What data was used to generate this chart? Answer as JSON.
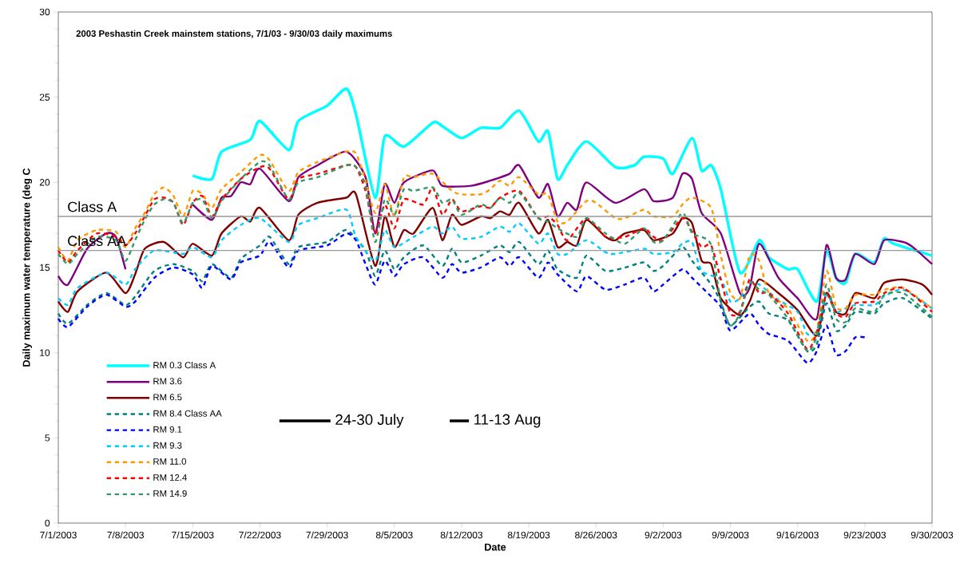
{
  "chart_data": {
    "type": "line",
    "title": "2003 Peshastin Creek mainstem stations, 7/1/03 - 9/30/03 daily maximums",
    "xlabel": "Date",
    "ylabel": "Daily maximum water temperature (deg C",
    "xlim": [
      "2003-07-01",
      "2003-09-30"
    ],
    "ylim": [
      0,
      30
    ],
    "xticks": [
      {
        "value": "2003-07-01",
        "label": "7/1/2003"
      },
      {
        "value": "2003-07-08",
        "label": "7/8/2003"
      },
      {
        "value": "2003-07-15",
        "label": "7/15/2003"
      },
      {
        "value": "2003-07-22",
        "label": "7/22/2003"
      },
      {
        "value": "2003-07-29",
        "label": "7/29/2003"
      },
      {
        "value": "2003-08-05",
        "label": "8/5/2003"
      },
      {
        "value": "2003-08-12",
        "label": "8/12/2003"
      },
      {
        "value": "2003-08-19",
        "label": "8/19/2003"
      },
      {
        "value": "2003-08-26",
        "label": "8/26/2003"
      },
      {
        "value": "2003-09-02",
        "label": "9/2/2003"
      },
      {
        "value": "2003-09-09",
        "label": "9/9/2003"
      },
      {
        "value": "2003-09-16",
        "label": "9/16/2003"
      },
      {
        "value": "2003-09-23",
        "label": "9/23/2003"
      },
      {
        "value": "2003-09-30",
        "label": "9/30/2003"
      }
    ],
    "yticks": [
      0,
      5,
      10,
      15,
      20,
      25,
      30
    ],
    "grid": false,
    "legend": "bottom left",
    "ref_lines": [
      {
        "axis": "y",
        "value": 18,
        "label": "Class A",
        "color": "#999999"
      },
      {
        "axis": "y",
        "value": 16,
        "label": "Class AA",
        "color": "#999999"
      }
    ],
    "annotations": [
      "24-30 July",
      "11-13 Aug"
    ],
    "series": [
      {
        "name": "RM 0.3 Class A",
        "color": "#00ffff",
        "line_style": "solid",
        "x": [
          "2003-07-15",
          "2003-07-17",
          "2003-07-18",
          "2003-07-21",
          "2003-07-22",
          "2003-07-25",
          "2003-07-26",
          "2003-07-29",
          "2003-07-31",
          "2003-08-01",
          "2003-08-03",
          "2003-08-04",
          "2003-08-06",
          "2003-08-09",
          "2003-08-10",
          "2003-08-12",
          "2003-08-14",
          "2003-08-16",
          "2003-08-18",
          "2003-08-20",
          "2003-08-21",
          "2003-08-22",
          "2003-08-23",
          "2003-08-25",
          "2003-08-28",
          "2003-08-30",
          "2003-08-31",
          "2003-09-02",
          "2003-09-03",
          "2003-09-05",
          "2003-09-06",
          "2003-09-07",
          "2003-09-08",
          "2003-09-10",
          "2003-09-12",
          "2003-09-13",
          "2003-09-15",
          "2003-09-16",
          "2003-09-18",
          "2003-09-19",
          "2003-09-20",
          "2003-09-21",
          "2003-09-22",
          "2003-09-24",
          "2003-09-25",
          "2003-09-26",
          "2003-09-30"
        ],
        "values": [
          20.4,
          20.2,
          21.8,
          22.5,
          23.6,
          21.9,
          23.6,
          24.5,
          25.5,
          24.0,
          19.1,
          22.7,
          22.1,
          23.5,
          23.3,
          22.6,
          23.2,
          23.2,
          24.2,
          22.4,
          23.0,
          20.2,
          21.0,
          22.4,
          20.9,
          21.0,
          21.5,
          21.4,
          20.5,
          22.6,
          20.7,
          21.0,
          19.6,
          14.7,
          16.6,
          15.6,
          14.9,
          14.9,
          13.0,
          16.0,
          14.4,
          14.1,
          15.8,
          15.3,
          16.7,
          16.4,
          15.7
        ]
      },
      {
        "name": "RM 3.6",
        "color": "#800080",
        "line_style": "solid",
        "x": [
          "2003-07-01",
          "2003-07-02",
          "2003-07-04",
          "2003-07-06",
          "2003-07-07",
          "2003-07-08",
          "2003-07-11",
          "2003-07-15",
          "2003-07-17",
          "2003-07-18",
          "2003-07-19",
          "2003-07-20",
          "2003-07-21",
          "2003-07-22",
          "2003-07-25",
          "2003-07-26",
          "2003-07-28",
          "2003-07-31",
          "2003-08-02",
          "2003-08-03",
          "2003-08-04",
          "2003-08-05",
          "2003-08-06",
          "2003-08-09",
          "2003-08-10",
          "2003-08-13",
          "2003-08-15",
          "2003-08-17",
          "2003-08-18",
          "2003-08-20",
          "2003-08-21",
          "2003-08-22",
          "2003-08-23",
          "2003-08-24",
          "2003-08-25",
          "2003-08-28",
          "2003-08-31",
          "2003-09-01",
          "2003-09-03",
          "2003-09-04",
          "2003-09-05",
          "2003-09-06",
          "2003-09-08",
          "2003-09-10",
          "2003-09-11",
          "2003-09-12",
          "2003-09-14",
          "2003-09-16",
          "2003-09-18",
          "2003-09-19",
          "2003-09-20",
          "2003-09-21",
          "2003-09-22",
          "2003-09-24",
          "2003-09-25",
          "2003-09-27",
          "2003-09-28",
          "2003-09-30"
        ],
        "values": [
          14.5,
          14.0,
          16.1,
          17.0,
          16.8,
          14.9,
          null,
          18.7,
          17.8,
          19.1,
          19.2,
          20.0,
          19.9,
          20.8,
          18.9,
          20.3,
          21.0,
          21.8,
          20.3,
          17.0,
          19.9,
          18.8,
          20.0,
          20.7,
          19.8,
          19.8,
          20.1,
          20.5,
          21.0,
          19.1,
          19.9,
          18.0,
          18.8,
          18.4,
          20.0,
          18.8,
          19.6,
          18.9,
          19.1,
          20.5,
          20.2,
          18.2,
          17.0,
          13.5,
          13.8,
          16.4,
          14.4,
          13.2,
          12.0,
          16.3,
          14.4,
          14.3,
          15.8,
          15.2,
          16.6,
          16.5,
          16.2,
          15.2
        ]
      },
      {
        "name": "RM 6.5",
        "color": "#800000",
        "line_style": "solid",
        "x": [
          "2003-07-01",
          "2003-07-02",
          "2003-07-03",
          "2003-07-06",
          "2003-07-08",
          "2003-07-09",
          "2003-07-10",
          "2003-07-12",
          "2003-07-14",
          "2003-07-15",
          "2003-07-17",
          "2003-07-18",
          "2003-07-20",
          "2003-07-21",
          "2003-07-22",
          "2003-07-25",
          "2003-07-26",
          "2003-07-28",
          "2003-07-31",
          "2003-08-01",
          "2003-08-03",
          "2003-08-04",
          "2003-08-05",
          "2003-08-06",
          "2003-08-07",
          "2003-08-09",
          "2003-08-10",
          "2003-08-11",
          "2003-08-12",
          "2003-08-14",
          "2003-08-15",
          "2003-08-16",
          "2003-08-17",
          "2003-08-18",
          "2003-08-20",
          "2003-08-21",
          "2003-08-22",
          "2003-08-23",
          "2003-08-24",
          "2003-08-25",
          "2003-08-27",
          "2003-08-28",
          "2003-08-29",
          "2003-08-31",
          "2003-09-01",
          "2003-09-03",
          "2003-09-04",
          "2003-09-05",
          "2003-09-06",
          "2003-09-07",
          "2003-09-08",
          "2003-09-10",
          "2003-09-11",
          "2003-09-12",
          "2003-09-14",
          "2003-09-16",
          "2003-09-18",
          "2003-09-19",
          "2003-09-20",
          "2003-09-21",
          "2003-09-22",
          "2003-09-24",
          "2003-09-25",
          "2003-09-27",
          "2003-09-29",
          "2003-09-30"
        ],
        "values": [
          13.0,
          12.4,
          13.6,
          14.7,
          13.5,
          14.6,
          16.1,
          16.5,
          15.6,
          16.4,
          15.7,
          17.0,
          18.0,
          17.7,
          18.5,
          16.6,
          18.1,
          18.8,
          19.1,
          19.3,
          15.1,
          18.0,
          16.2,
          17.2,
          17.0,
          18.5,
          16.6,
          18.1,
          17.5,
          18.0,
          17.9,
          18.3,
          18.1,
          18.8,
          17.0,
          17.8,
          16.2,
          16.5,
          16.3,
          17.8,
          16.8,
          16.6,
          17.0,
          17.2,
          16.6,
          17.0,
          17.9,
          17.6,
          15.4,
          15.2,
          13.2,
          12.2,
          13.0,
          14.3,
          13.5,
          12.5,
          11.0,
          13.5,
          12.4,
          12.3,
          13.5,
          13.2,
          14.1,
          14.3,
          14.0,
          13.4
        ]
      },
      {
        "name": "RM 8.4 Class AA",
        "color": "#008080",
        "line_style": "dashed",
        "x": [
          "2003-07-01",
          "2003-07-02",
          "2003-07-04",
          "2003-07-06",
          "2003-07-08",
          "2003-07-09",
          "2003-07-11",
          "2003-07-13",
          "2003-07-15",
          "2003-07-16",
          "2003-07-17",
          "2003-07-19",
          "2003-07-20",
          "2003-07-22",
          "2003-07-23",
          "2003-07-25",
          "2003-07-26",
          "2003-07-29",
          "2003-07-31",
          "2003-08-02",
          "2003-08-03",
          "2003-08-04",
          "2003-08-05",
          "2003-08-06",
          "2003-08-08",
          "2003-08-10",
          "2003-08-11",
          "2003-08-12",
          "2003-08-14",
          "2003-08-16",
          "2003-08-17",
          "2003-08-18",
          "2003-08-20",
          "2003-08-21",
          "2003-08-22",
          "2003-08-24",
          "2003-08-25",
          "2003-08-27",
          "2003-08-29",
          "2003-08-31",
          "2003-09-01",
          "2003-09-02",
          "2003-09-04",
          "2003-09-05",
          "2003-09-07",
          "2003-09-08",
          "2003-09-09",
          "2003-09-11",
          "2003-09-12",
          "2003-09-13",
          "2003-09-15",
          "2003-09-17",
          "2003-09-18",
          "2003-09-19",
          "2003-09-20",
          "2003-09-21",
          "2003-09-22",
          "2003-09-24",
          "2003-09-25",
          "2003-09-27",
          "2003-09-30"
        ],
        "values": [
          12.3,
          11.7,
          12.8,
          13.5,
          12.8,
          13.3,
          14.8,
          15.2,
          14.8,
          14.2,
          15.2,
          14.4,
          15.5,
          16.3,
          16.8,
          15.2,
          16.2,
          16.5,
          17.2,
          16.0,
          14.5,
          16.0,
          14.9,
          15.6,
          16.3,
          15.1,
          16.1,
          15.3,
          15.7,
          16.3,
          15.9,
          16.5,
          15.2,
          16.0,
          14.9,
          14.4,
          15.7,
          14.8,
          15.0,
          15.3,
          14.8,
          15.1,
          16.2,
          15.4,
          14.0,
          13.0,
          11.6,
          12.7,
          13.0,
          12.3,
          11.9,
          10.1,
          10.5,
          12.9,
          11.3,
          11.6,
          12.4,
          12.3,
          12.9,
          13.2,
          12.0
        ]
      },
      {
        "name": "RM 9.1",
        "color": "#0000ff",
        "line_style": "dashed",
        "x": [
          "2003-07-01",
          "2003-07-02",
          "2003-07-04",
          "2003-07-06",
          "2003-07-08",
          "2003-07-09",
          "2003-07-11",
          "2003-07-13",
          "2003-07-15",
          "2003-07-16",
          "2003-07-17",
          "2003-07-19",
          "2003-07-20",
          "2003-07-22",
          "2003-07-23",
          "2003-07-25",
          "2003-07-26",
          "2003-07-29",
          "2003-07-31",
          "2003-08-01",
          "2003-08-02",
          "2003-08-03",
          "2003-08-04",
          "2003-08-05",
          "2003-08-06",
          "2003-08-08",
          "2003-08-10",
          "2003-08-11",
          "2003-08-12",
          "2003-08-14",
          "2003-08-16",
          "2003-08-17",
          "2003-08-18",
          "2003-08-20",
          "2003-08-21",
          "2003-08-22",
          "2003-08-24",
          "2003-08-25",
          "2003-08-27",
          "2003-08-29",
          "2003-08-31",
          "2003-09-01",
          "2003-09-02",
          "2003-09-04",
          "2003-09-05",
          "2003-09-07",
          "2003-09-08",
          "2003-09-09",
          "2003-09-11",
          "2003-09-12",
          "2003-09-13",
          "2003-09-15",
          "2003-09-17",
          "2003-09-18",
          "2003-09-19",
          "2003-09-20",
          "2003-09-21",
          "2003-09-22",
          "2003-09-23"
        ],
        "values": [
          12.0,
          11.5,
          12.7,
          13.4,
          12.7,
          13.0,
          14.4,
          15.0,
          14.6,
          13.8,
          15.1,
          14.3,
          15.3,
          15.7,
          16.5,
          15.0,
          16.0,
          16.3,
          17.0,
          16.6,
          15.2,
          14.0,
          15.4,
          14.5,
          15.2,
          15.6,
          14.4,
          15.2,
          14.7,
          15.0,
          15.6,
          15.1,
          15.6,
          14.4,
          15.3,
          14.6,
          13.6,
          14.5,
          13.7,
          14.0,
          14.4,
          13.6,
          14.0,
          14.9,
          14.4,
          13.3,
          12.7,
          11.3,
          12.3,
          11.6,
          11.1,
          10.7,
          9.4,
          10.1,
          11.6,
          9.9,
          10.1,
          10.9,
          10.9
        ]
      },
      {
        "name": "RM 9.3",
        "color": "#00ccff",
        "line_style": "dashed",
        "x": [
          "2003-07-01",
          "2003-07-02",
          "2003-07-03",
          "2003-07-06",
          "2003-07-08",
          "2003-07-09",
          "2003-07-11",
          "2003-07-14",
          "2003-07-15",
          "2003-07-17",
          "2003-07-18",
          "2003-07-20",
          "2003-07-22",
          "2003-07-25",
          "2003-07-26",
          "2003-07-28",
          "2003-07-31",
          "2003-08-01",
          "2003-08-03",
          "2003-08-04",
          "2003-08-05",
          "2003-08-07",
          "2003-08-09",
          "2003-08-10",
          "2003-08-11",
          "2003-08-12",
          "2003-08-14",
          "2003-08-16",
          "2003-08-17",
          "2003-08-18",
          "2003-08-20",
          "2003-08-21",
          "2003-08-22",
          "2003-08-23",
          "2003-08-25",
          "2003-08-27",
          "2003-08-28",
          "2003-08-31",
          "2003-09-01",
          "2003-09-03",
          "2003-09-04",
          "2003-09-05",
          "2003-09-06",
          "2003-09-08",
          "2003-09-09",
          "2003-09-10",
          "2003-09-11",
          "2003-09-12",
          "2003-09-14",
          "2003-09-16",
          "2003-09-17",
          "2003-09-18",
          "2003-09-19",
          "2003-09-20",
          "2003-09-21",
          "2003-09-22",
          "2003-09-24",
          "2003-09-25",
          "2003-09-27",
          "2003-09-30"
        ],
        "values": [
          13.2,
          12.8,
          13.8,
          14.7,
          14.0,
          14.9,
          16.0,
          15.8,
          16.2,
          15.6,
          16.6,
          17.5,
          17.9,
          16.5,
          17.5,
          17.9,
          18.4,
          16.8,
          15.4,
          17.2,
          16.2,
          16.8,
          17.4,
          17.0,
          17.4,
          16.7,
          16.8,
          17.4,
          17.1,
          17.6,
          16.4,
          17.0,
          15.8,
          15.8,
          16.6,
          15.9,
          15.8,
          16.1,
          15.8,
          15.9,
          16.4,
          16.5,
          14.8,
          14.3,
          13.0,
          13.2,
          14.1,
          14.0,
          13.1,
          12.4,
          11.1,
          11.3,
          13.4,
          12.4,
          12.6,
          12.8,
          12.8,
          13.3,
          13.7,
          12.6
        ]
      },
      {
        "name": "RM 11.0",
        "color": "#ff9900",
        "line_style": "dashed",
        "x": [
          "2003-07-01",
          "2003-07-02",
          "2003-07-03",
          "2003-07-05",
          "2003-07-07",
          "2003-07-08",
          "2003-07-09",
          "2003-07-10",
          "2003-07-11",
          "2003-07-12",
          "2003-07-13",
          "2003-07-14",
          "2003-07-15",
          "2003-07-16",
          "2003-07-17",
          "2003-07-18",
          "2003-07-20",
          "2003-07-22",
          "2003-07-23",
          "2003-07-25",
          "2003-07-26",
          "2003-07-28",
          "2003-07-31",
          "2003-08-01",
          "2003-08-02",
          "2003-08-03",
          "2003-08-04",
          "2003-08-05",
          "2003-08-06",
          "2003-08-07",
          "2003-08-09",
          "2003-08-11",
          "2003-08-12",
          "2003-08-14",
          "2003-08-15",
          "2003-08-16",
          "2003-08-17",
          "2003-08-18",
          "2003-08-20",
          "2003-08-21",
          "2003-08-22",
          "2003-08-23",
          "2003-08-25",
          "2003-08-26",
          "2003-08-28",
          "2003-08-29",
          "2003-08-31",
          "2003-09-01",
          "2003-09-03",
          "2003-09-04",
          "2003-09-05",
          "2003-09-07",
          "2003-09-08",
          "2003-09-09",
          "2003-09-10",
          "2003-09-11",
          "2003-09-12",
          "2003-09-13",
          "2003-09-15",
          "2003-09-17",
          "2003-09-18",
          "2003-09-19",
          "2003-09-20",
          "2003-09-21",
          "2003-09-22",
          "2003-09-24",
          "2003-09-25",
          "2003-09-27",
          "2003-09-30"
        ],
        "values": [
          16.2,
          15.4,
          16.6,
          17.2,
          17.1,
          16.2,
          17.3,
          18.2,
          19.3,
          19.7,
          19.2,
          18.0,
          19.5,
          19.3,
          18.5,
          19.6,
          20.6,
          21.6,
          21.3,
          19.5,
          20.6,
          21.2,
          21.8,
          21.7,
          20.1,
          18.2,
          19.9,
          18.0,
          20.3,
          20.3,
          20.5,
          19.5,
          19.3,
          19.3,
          19.6,
          20.1,
          19.8,
          20.3,
          19.3,
          19.3,
          17.7,
          17.7,
          18.9,
          18.8,
          17.9,
          17.9,
          18.4,
          18.0,
          18.0,
          18.7,
          19.1,
          18.5,
          15.7,
          13.5,
          13.2,
          15.7,
          15.4,
          13.5,
          12.6,
          10.7,
          11.3,
          14.8,
          12.7,
          12.6,
          13.4,
          13.4,
          13.7,
          13.8,
          12.6
        ]
      },
      {
        "name": "RM 12.4",
        "color": "#ff0000",
        "line_style": "dashed",
        "x": [
          "2003-07-01",
          "2003-07-02",
          "2003-07-03",
          "2003-07-05",
          "2003-07-07",
          "2003-07-08",
          "2003-07-09",
          "2003-07-10",
          "2003-07-11",
          "2003-07-12",
          "2003-07-13",
          "2003-07-14",
          "2003-07-15",
          "2003-07-16",
          "2003-07-17",
          "2003-07-18",
          "2003-07-20",
          "2003-07-22",
          "2003-07-23",
          "2003-07-25",
          "2003-07-26",
          "2003-07-28",
          "2003-07-31",
          "2003-08-01",
          "2003-08-02",
          "2003-08-03",
          "2003-08-04",
          "2003-08-05",
          "2003-08-06",
          "2003-08-08",
          "2003-08-09",
          "2003-08-10",
          "2003-08-11",
          "2003-08-12",
          "2003-08-14",
          "2003-08-15",
          "2003-08-16",
          "2003-08-18",
          "2003-08-20",
          "2003-08-21",
          "2003-08-22",
          "2003-08-23",
          "2003-08-25",
          "2003-08-27",
          "2003-08-29",
          "2003-08-31",
          "2003-09-01",
          "2003-09-02",
          "2003-09-04",
          "2003-09-05",
          "2003-09-06",
          "2003-09-07",
          "2003-09-08",
          "2003-09-09",
          "2003-09-10",
          "2003-09-11",
          "2003-09-12",
          "2003-09-13",
          "2003-09-15",
          "2003-09-17",
          "2003-09-18",
          "2003-09-19",
          "2003-09-20",
          "2003-09-21",
          "2003-09-22",
          "2003-09-24",
          "2003-09-25",
          "2003-09-27",
          "2003-09-30"
        ],
        "values": [
          16.0,
          15.3,
          16.0,
          17.0,
          16.8,
          16.3,
          17.0,
          18.0,
          19.0,
          19.1,
          18.8,
          17.5,
          18.8,
          19.2,
          18.0,
          19.0,
          20.2,
          20.9,
          20.8,
          19.0,
          20.2,
          20.5,
          21.0,
          20.9,
          19.5,
          17.0,
          18.7,
          17.3,
          19.0,
          18.7,
          19.7,
          18.1,
          19.0,
          18.3,
          18.6,
          18.5,
          19.1,
          19.5,
          17.9,
          18.0,
          17.5,
          16.6,
          17.9,
          16.8,
          16.8,
          17.3,
          16.8,
          16.6,
          17.9,
          17.1,
          16.2,
          16.3,
          14.3,
          12.3,
          12.4,
          14.3,
          13.5,
          13.5,
          12.3,
          10.2,
          11.2,
          13.4,
          12.3,
          12.1,
          12.9,
          13.0,
          13.5,
          13.8,
          12.4
        ]
      },
      {
        "name": "RM 14.9",
        "color": "#339966",
        "line_style": "dashed",
        "x": [
          "2003-07-01",
          "2003-07-02",
          "2003-07-03",
          "2003-07-05",
          "2003-07-07",
          "2003-07-08",
          "2003-07-09",
          "2003-07-10",
          "2003-07-11",
          "2003-07-12",
          "2003-07-13",
          "2003-07-14",
          "2003-07-15",
          "2003-07-16",
          "2003-07-17",
          "2003-07-18",
          "2003-07-20",
          "2003-07-22",
          "2003-07-23",
          "2003-07-25",
          "2003-07-26",
          "2003-07-28",
          "2003-07-31",
          "2003-08-01",
          "2003-08-02",
          "2003-08-03",
          "2003-08-04",
          "2003-08-05",
          "2003-08-06",
          "2003-08-07",
          "2003-08-09",
          "2003-08-10",
          "2003-08-11",
          "2003-08-12",
          "2003-08-14",
          "2003-08-15",
          "2003-08-16",
          "2003-08-17",
          "2003-08-18",
          "2003-08-20",
          "2003-08-21",
          "2003-08-22",
          "2003-08-24",
          "2003-08-25",
          "2003-08-27",
          "2003-08-29",
          "2003-08-31",
          "2003-09-01",
          "2003-09-02",
          "2003-09-04",
          "2003-09-05",
          "2003-09-06",
          "2003-09-07",
          "2003-09-08",
          "2003-09-09",
          "2003-09-10",
          "2003-09-11",
          "2003-09-12",
          "2003-09-13",
          "2003-09-15",
          "2003-09-17",
          "2003-09-18",
          "2003-09-19",
          "2003-09-20",
          "2003-09-21",
          "2003-09-22",
          "2003-09-24",
          "2003-09-25",
          "2003-09-27",
          "2003-09-30"
        ],
        "values": [
          15.8,
          15.2,
          15.8,
          16.8,
          16.6,
          15.4,
          16.6,
          17.8,
          18.7,
          19.0,
          18.8,
          17.6,
          18.8,
          19.0,
          17.9,
          18.9,
          20.2,
          21.2,
          21.0,
          19.0,
          20.0,
          20.3,
          21.0,
          20.9,
          19.8,
          16.5,
          19.0,
          18.1,
          19.6,
          19.5,
          19.7,
          18.8,
          19.0,
          18.1,
          18.7,
          18.5,
          19.1,
          18.8,
          19.4,
          17.9,
          17.7,
          17.3,
          16.8,
          17.9,
          17.0,
          16.4,
          17.3,
          16.5,
          16.6,
          18.2,
          17.0,
          16.8,
          16.3,
          13.0,
          11.6,
          12.3,
          14.1,
          13.7,
          13.4,
          12.0,
          10.1,
          11.0,
          14.0,
          12.0,
          11.8,
          12.6,
          12.4,
          13.4,
          13.5,
          12.1
        ]
      }
    ]
  }
}
